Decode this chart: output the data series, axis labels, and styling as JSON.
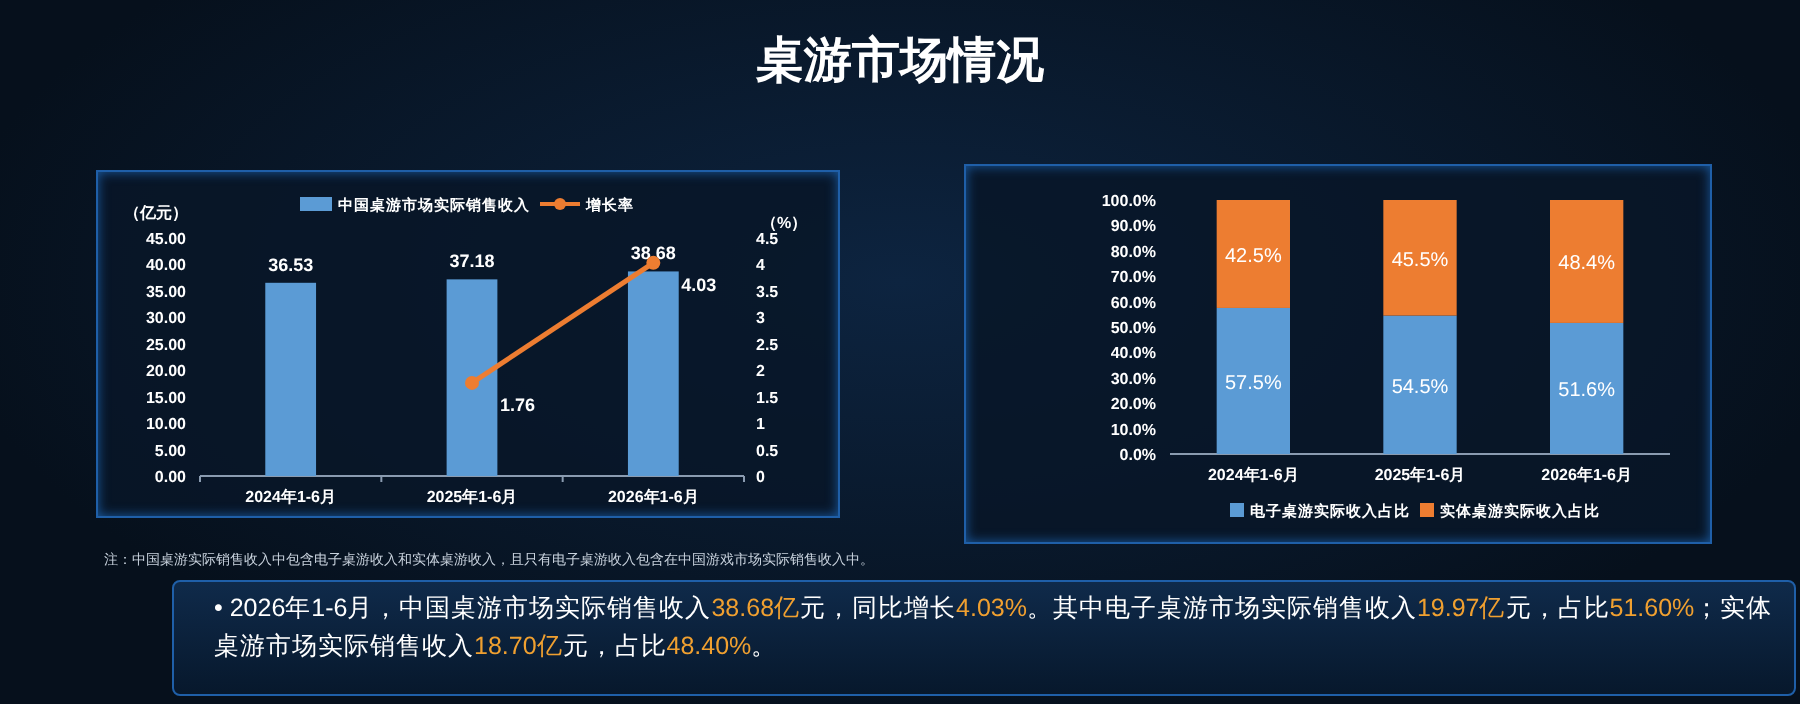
{
  "chart_data": [
    {
      "type": "bar",
      "title": "桌游市场情况",
      "categories": [
        "2024年1-6月",
        "2025年1-6月",
        "2026年1-6月"
      ],
      "series": [
        {
          "name": "中国桌游市场实际销售收入",
          "color": "#5b9bd5",
          "values": [
            36.53,
            37.18,
            38.68
          ]
        },
        {
          "name": "增长率",
          "type": "line",
          "axis": "y2",
          "color": "#ed7d31",
          "marker": "circle",
          "values": [
            null,
            1.76,
            4.03
          ]
        }
      ],
      "ylabel": "（亿元）",
      "y2label": "（%）",
      "ylim": [
        0,
        45
      ],
      "yticks": [
        {
          "value": 0,
          "label": "0.00"
        },
        {
          "value": 5,
          "label": "5.00"
        },
        {
          "value": 10,
          "label": "10.00"
        },
        {
          "value": 15,
          "label": "15.00"
        },
        {
          "value": 20,
          "label": "20.00"
        },
        {
          "value": 25,
          "label": "25.00"
        },
        {
          "value": 30,
          "label": "30.00"
        },
        {
          "value": 35,
          "label": "35.00"
        },
        {
          "value": 40,
          "label": "40.00"
        },
        {
          "value": 45,
          "label": "45.00"
        }
      ],
      "y2lim": [
        0,
        4.5
      ],
      "y2ticks": [
        0,
        0.5,
        1,
        1.5,
        2,
        2.5,
        3,
        3.5,
        4,
        4.5
      ],
      "data_labels": true,
      "legend": "top",
      "annotations": [
        "注：中国桌游实际销售收入中包含电子桌游收入和实体桌游收入，且只有电子桌游收入包含在中国游戏市场实际销售收入中。",
        "• 2026年1-6月，中国桌游市场实际销售收入38.68亿元，同比增长4.03%。其中电子桌游市场实际销售收入19.97亿元，占比51.60%；实体桌游市场实际销售收入18.70亿元，占比48.40%。"
      ]
    },
    {
      "type": "bar",
      "stacked": true,
      "categories": [
        "2024年1-6月",
        "2025年1-6月",
        "2026年1-6月"
      ],
      "series": [
        {
          "name": "电子桌游实际收入占比",
          "color": "#5b9bd5",
          "values": [
            57.5,
            54.5,
            51.6
          ],
          "value_labels": [
            "57.5%",
            "54.5%",
            "51.6%"
          ]
        },
        {
          "name": "实体桌游实际收入占比",
          "color": "#ed7d31",
          "values": [
            42.5,
            45.5,
            48.4
          ],
          "value_labels": [
            "42.5%",
            "45.5%",
            "48.4%"
          ]
        }
      ],
      "ylim": [
        0,
        100
      ],
      "yticks": [
        {
          "value": 0,
          "label": "0.0%"
        },
        {
          "value": 10,
          "label": "10.0%"
        },
        {
          "value": 20,
          "label": "20.0%"
        },
        {
          "value": 30,
          "label": "30.0%"
        },
        {
          "value": 40,
          "label": "40.0%"
        },
        {
          "value": 50,
          "label": "50.0%"
        },
        {
          "value": 60,
          "label": "60.0%"
        },
        {
          "value": 70,
          "label": "70.0%"
        },
        {
          "value": 80,
          "label": "80.0%"
        },
        {
          "value": 90,
          "label": "90.0%"
        },
        {
          "value": 100,
          "label": "100.0%"
        }
      ],
      "legend": "bottom"
    }
  ]
}
